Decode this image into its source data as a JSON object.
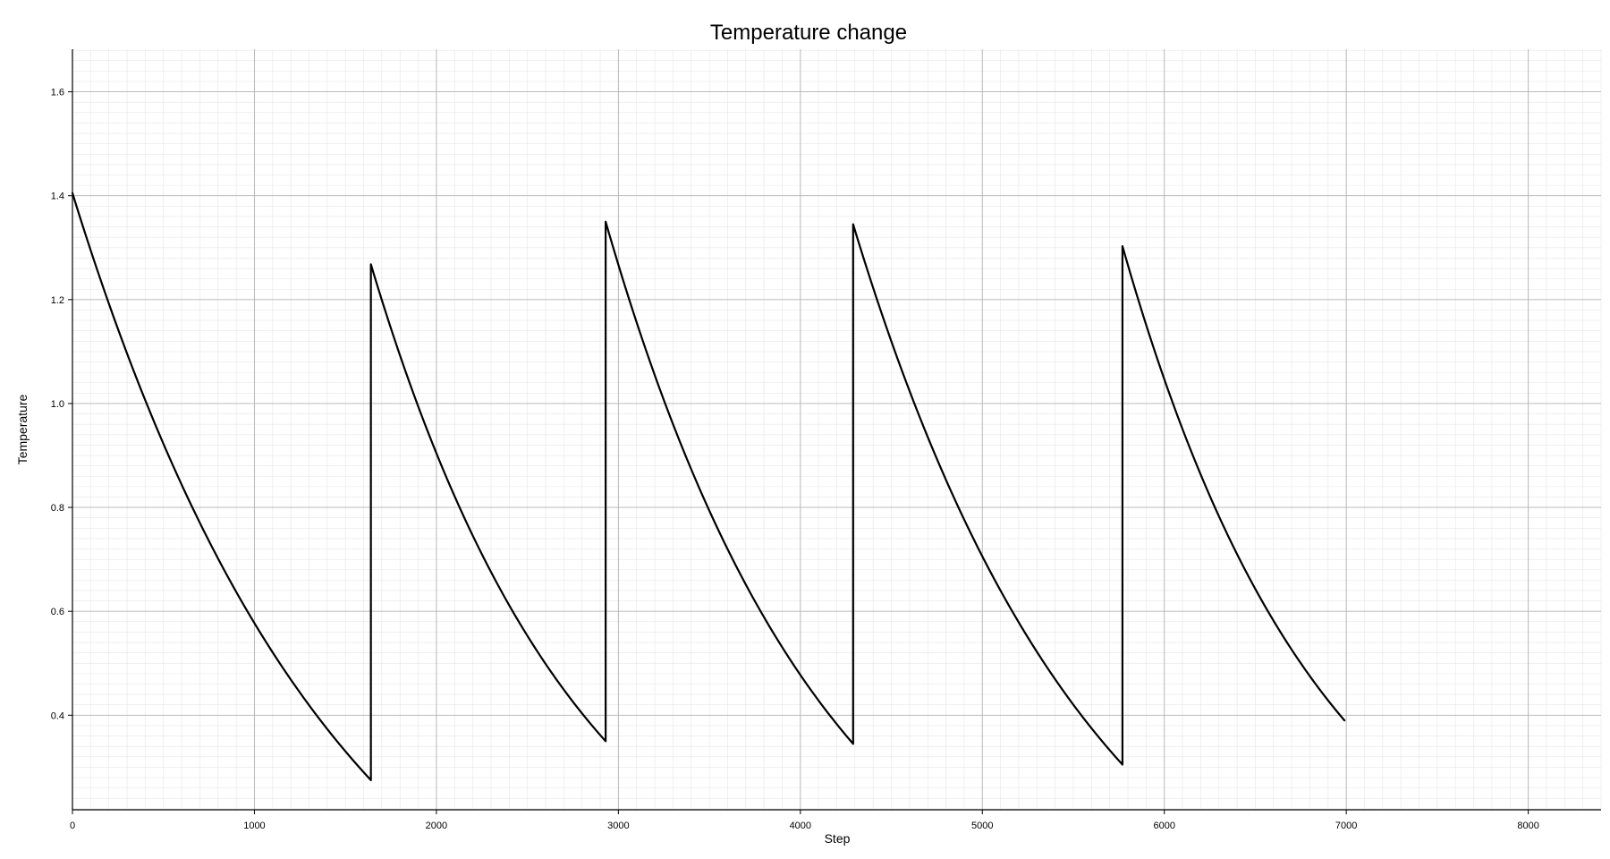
{
  "chart_data": {
    "type": "line",
    "title": "Temperature change",
    "xlabel": "Step",
    "ylabel": "Temperature",
    "xlim": [
      0,
      8400
    ],
    "ylim": [
      0.218,
      1.682
    ],
    "xticks": [
      0,
      1000,
      2000,
      3000,
      4000,
      5000,
      6000,
      7000,
      8000
    ],
    "yticks": [
      0.4,
      0.6,
      0.8,
      1.0,
      1.2,
      1.4,
      1.6
    ],
    "ytick_labels": [
      "0.4",
      "0.6",
      "0.8",
      "1.0",
      "1.2",
      "1.4",
      "1.6"
    ],
    "grid": true,
    "minor_grid": true,
    "legend": "none",
    "line_color": "#000000",
    "series": [
      {
        "segments": [
          {
            "x0": 0,
            "y0": 1.405,
            "x1": 1640,
            "y1": 0.275
          },
          {
            "x0": 1640,
            "y0": 1.268,
            "x1": 2930,
            "y1": 0.35
          },
          {
            "x0": 2930,
            "y0": 1.35,
            "x1": 4290,
            "y1": 0.345
          },
          {
            "x0": 4290,
            "y0": 1.345,
            "x1": 5770,
            "y1": 0.305
          },
          {
            "x0": 5770,
            "y0": 1.303,
            "x1": 6990,
            "y1": 0.39
          }
        ]
      }
    ]
  }
}
